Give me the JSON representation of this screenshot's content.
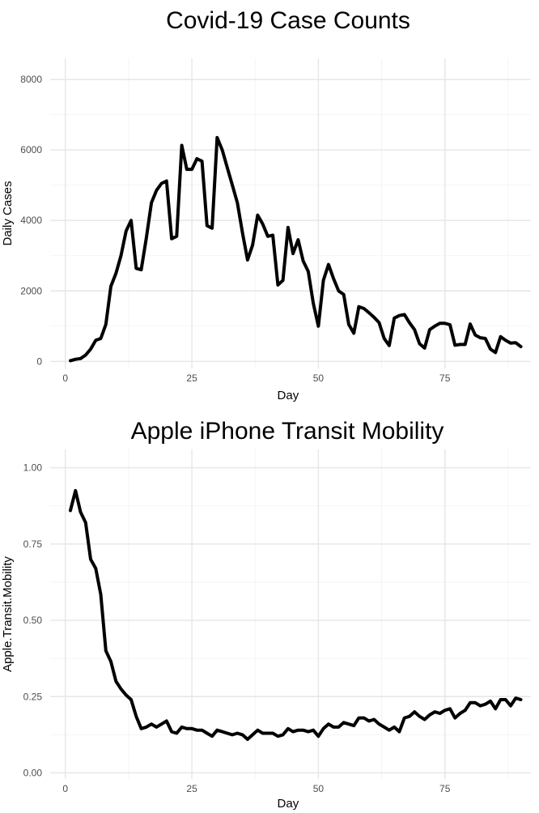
{
  "chart_data": [
    {
      "type": "line",
      "title": "Covid-19 Case Counts",
      "xlabel": "Day",
      "ylabel": "Daily Cases",
      "xlim": [
        -3,
        92
      ],
      "ylim": [
        -200,
        8600
      ],
      "xticks": [
        0,
        25,
        50,
        75
      ],
      "yticks": [
        0,
        2000,
        4000,
        6000,
        8000
      ],
      "xtick_labels": [
        "0",
        "25",
        "50",
        "75"
      ],
      "ytick_labels": [
        "0",
        "2000",
        "4000",
        "6000",
        "8000"
      ],
      "grid": true,
      "color": "#000000",
      "x": [
        1,
        2,
        3,
        4,
        5,
        6,
        7,
        8,
        9,
        10,
        11,
        12,
        13,
        14,
        15,
        16,
        17,
        18,
        19,
        20,
        21,
        22,
        23,
        24,
        25,
        26,
        27,
        28,
        29,
        30,
        31,
        32,
        33,
        34,
        35,
        36,
        37,
        38,
        39,
        40,
        41,
        42,
        43,
        44,
        45,
        46,
        47,
        48,
        49,
        50,
        51,
        52,
        53,
        54,
        55,
        56,
        57,
        58,
        59,
        60,
        61,
        62,
        63,
        64,
        65,
        66,
        67,
        68,
        69,
        70,
        71,
        72,
        73,
        74,
        75,
        76,
        77,
        78,
        79,
        80,
        81,
        82,
        83,
        84,
        85,
        86,
        87,
        88,
        89,
        90
      ],
      "y": [
        20,
        60,
        80,
        180,
        350,
        600,
        650,
        1050,
        2130,
        2500,
        3000,
        3700,
        4000,
        2640,
        2600,
        3500,
        4500,
        4850,
        5050,
        5120,
        3480,
        3550,
        6130,
        5450,
        5450,
        5750,
        5680,
        3850,
        3780,
        6350,
        6000,
        5500,
        5000,
        4500,
        3650,
        2880,
        3300,
        4150,
        3900,
        3550,
        3580,
        2170,
        2300,
        3800,
        3060,
        3450,
        2850,
        2550,
        1650,
        1000,
        2300,
        2750,
        2350,
        2000,
        1900,
        1050,
        800,
        1550,
        1500,
        1380,
        1250,
        1100,
        650,
        450,
        1230,
        1300,
        1330,
        1100,
        900,
        500,
        380,
        900,
        1000,
        1080,
        1080,
        1040,
        460,
        480,
        480,
        1060,
        750,
        670,
        650,
        350,
        250,
        700,
        600,
        520,
        530,
        420
      ]
    },
    {
      "type": "line",
      "title": "Apple iPhone Transit Mobility",
      "xlabel": "Day",
      "ylabel": "Apple.Transit.Mobility",
      "xlim": [
        -3,
        92
      ],
      "ylim": [
        -0.02,
        1.06
      ],
      "xticks": [
        0,
        25,
        50,
        75
      ],
      "yticks": [
        0,
        0.25,
        0.5,
        0.75,
        1.0
      ],
      "xtick_labels": [
        "0",
        "25",
        "50",
        "75"
      ],
      "ytick_labels": [
        "0.00",
        "0.25",
        "0.50",
        "0.75",
        "1.00"
      ],
      "grid": true,
      "color": "#000000",
      "x": [
        1,
        2,
        3,
        4,
        5,
        6,
        7,
        8,
        9,
        10,
        11,
        12,
        13,
        14,
        15,
        16,
        17,
        18,
        19,
        20,
        21,
        22,
        23,
        24,
        25,
        26,
        27,
        28,
        29,
        30,
        31,
        32,
        33,
        34,
        35,
        36,
        37,
        38,
        39,
        40,
        41,
        42,
        43,
        44,
        45,
        46,
        47,
        48,
        49,
        50,
        51,
        52,
        53,
        54,
        55,
        56,
        57,
        58,
        59,
        60,
        61,
        62,
        63,
        64,
        65,
        66,
        67,
        68,
        69,
        70,
        71,
        72,
        73,
        74,
        75,
        76,
        77,
        78,
        79,
        80,
        81,
        82,
        83,
        84,
        85,
        86,
        87,
        88,
        89,
        90
      ],
      "y": [
        0.86,
        0.925,
        0.855,
        0.82,
        0.7,
        0.67,
        0.585,
        0.4,
        0.365,
        0.3,
        0.275,
        0.255,
        0.24,
        0.185,
        0.145,
        0.15,
        0.16,
        0.15,
        0.16,
        0.17,
        0.135,
        0.13,
        0.15,
        0.145,
        0.145,
        0.14,
        0.14,
        0.13,
        0.12,
        0.14,
        0.135,
        0.13,
        0.125,
        0.13,
        0.125,
        0.11,
        0.125,
        0.14,
        0.13,
        0.13,
        0.13,
        0.12,
        0.125,
        0.145,
        0.135,
        0.14,
        0.14,
        0.135,
        0.14,
        0.12,
        0.145,
        0.16,
        0.15,
        0.15,
        0.165,
        0.16,
        0.155,
        0.18,
        0.18,
        0.17,
        0.175,
        0.16,
        0.15,
        0.14,
        0.15,
        0.135,
        0.18,
        0.185,
        0.2,
        0.185,
        0.175,
        0.19,
        0.2,
        0.195,
        0.205,
        0.21,
        0.18,
        0.195,
        0.205,
        0.23,
        0.23,
        0.22,
        0.225,
        0.235,
        0.21,
        0.24,
        0.24,
        0.22,
        0.245,
        0.24
      ]
    }
  ]
}
